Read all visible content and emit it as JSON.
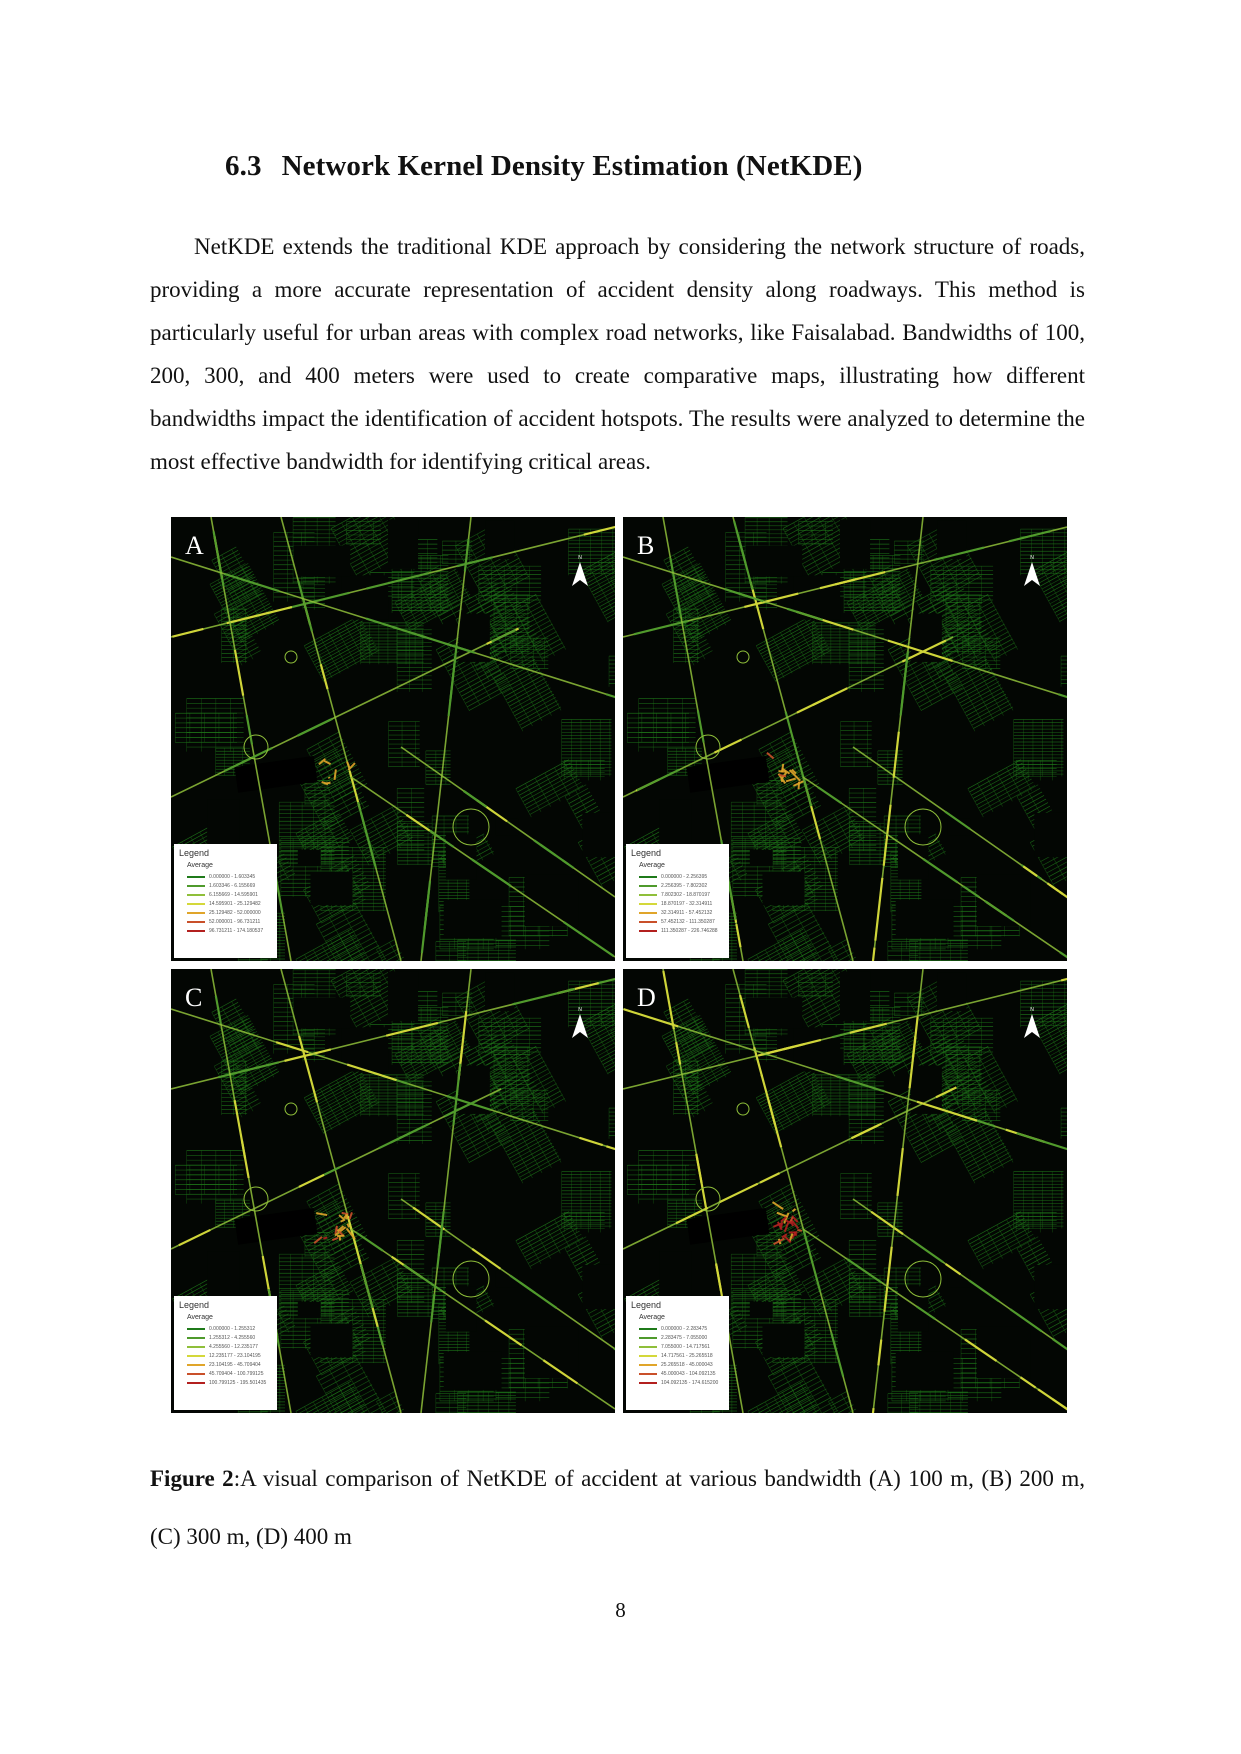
{
  "section": {
    "number": "6.3",
    "title": "Network Kernel Density Estimation (NetKDE)"
  },
  "paragraph": "NetKDE extends the traditional KDE approach by considering the network structure of roads, providing a more accurate representation of accident density along roadways. This method is particularly useful for urban areas with complex road networks, like Faisalabad. Bandwidths of 100, 200, 300, and 400 meters were used to create comparative maps, illustrating how different bandwidths impact the identification of accident hotspots. The results were analyzed to determine the most effective bandwidth for identifying critical areas.",
  "figure": {
    "colors": {
      "background": "#030603",
      "ramp": [
        "#1f7a1a",
        "#4f9a2c",
        "#8fbf3a",
        "#d4d83a",
        "#e0a52a",
        "#c9502a",
        "#b3201f"
      ]
    },
    "legend_title": "Legend",
    "legend_subtitle": "Average",
    "panels": [
      {
        "label": "A",
        "ranges": [
          "0.000000 - 1.603345",
          "1.603346 - 6.155669",
          "6.155669 - 14.595901",
          "14.595901 - 25.129482",
          "25.129482 - 52.000000",
          "52.000001 - 96.731211",
          "96.731211 - 174.180537"
        ]
      },
      {
        "label": "B",
        "ranges": [
          "0.000000 - 2.256395",
          "2.256395 - 7.802302",
          "7.802302 - 18.870197",
          "18.870197 - 32.314911",
          "32.314911 - 57.452132",
          "57.452132 - 111.350287",
          "111.350287 - 226.746288"
        ]
      },
      {
        "label": "C",
        "ranges": [
          "0.000000 - 1.255312",
          "1.255312 - 4.255560",
          "4.255560 - 12.235177",
          "12.235177 - 23.104195",
          "23.104195 - 45.709404",
          "45.709404 - 100.799125",
          "100.799125 - 195.501435"
        ]
      },
      {
        "label": "D",
        "ranges": [
          "0.000000 - 2.283475",
          "2.283475 - 7.055000",
          "7.055000 - 14.717561",
          "14.717561 - 25.265518",
          "25.265518 - 45.000043",
          "45.000043 - 104.092135",
          "104.092135 - 174.615200"
        ]
      }
    ]
  },
  "caption": {
    "label": "Figure 2",
    "text": ":A visual comparison of NetKDE of accident at various bandwidth (A) 100 m, (B) 200 m, (C) 300 m, (D) 400 m"
  },
  "page_number": "8"
}
